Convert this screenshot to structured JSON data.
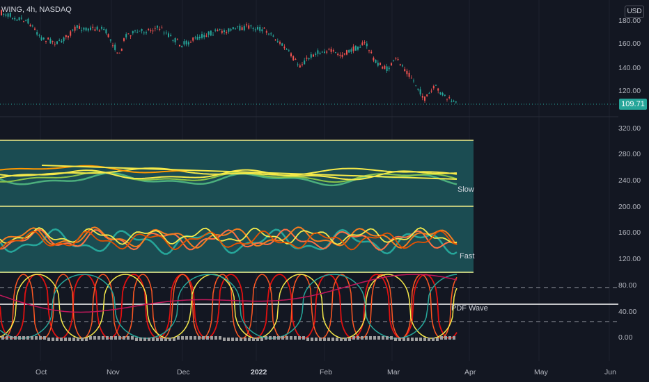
{
  "header": {
    "symbol_title": "WING, 4h, NASDAQ"
  },
  "currency_button": "USD",
  "last_price": "109.71",
  "price_axis": [
    "180.00",
    "160.00",
    "140.00",
    "120.00"
  ],
  "indicator_axis": [
    "320.00",
    "280.00",
    "240.00",
    "200.00",
    "160.00",
    "120.00",
    "80.00",
    "40.00",
    "0.00"
  ],
  "time_axis": [
    "Oct",
    "Nov",
    "Dec",
    "2022",
    "Feb",
    "Mar",
    "Apr",
    "May",
    "Jun"
  ],
  "indicator_labels": {
    "slow": "Slow",
    "fast": "Fast",
    "pdf": "PDF Wave"
  },
  "colors": {
    "background": "#131722",
    "up": "#26a69a",
    "down": "#ef5350",
    "band": "#1b4c52",
    "slow": "#f5e94a",
    "fast": "#f57c1f",
    "wave": "#e01010",
    "boundary": "#f3f08a"
  }
}
